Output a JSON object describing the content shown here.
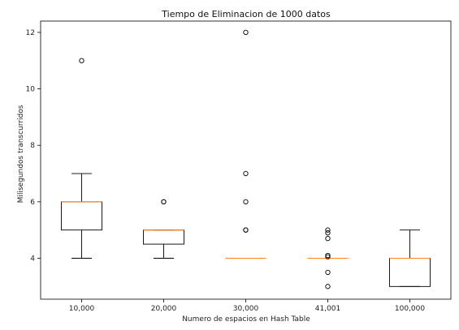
{
  "chart_data": {
    "type": "box",
    "title": "Tiempo de Eliminacion de 1000 datos",
    "xlabel": "Numero de espacios en Hash Table",
    "ylabel": "Milisegundos transcurridos",
    "categories": [
      "10,000",
      "20,000",
      "30,000",
      "41,001",
      "100,000"
    ],
    "ylim": [
      2.55,
      12.4
    ],
    "yticks": [
      4,
      6,
      8,
      10,
      12
    ],
    "grid": false,
    "legend": "none",
    "boxes": [
      {
        "category": "10,000",
        "whisker_low": 4,
        "q1": 5,
        "median": 6,
        "q3": 6,
        "whisker_high": 7,
        "outliers": [
          11
        ]
      },
      {
        "category": "20,000",
        "whisker_low": 4,
        "q1": 4.5,
        "median": 5,
        "q3": 5,
        "whisker_high": 5,
        "outliers": [
          6,
          6
        ]
      },
      {
        "category": "30,000",
        "whisker_low": 4,
        "q1": 4,
        "median": 4,
        "q3": 4,
        "whisker_high": 4,
        "outliers": [
          5,
          5,
          6,
          7,
          12
        ]
      },
      {
        "category": "41,001",
        "whisker_low": 4,
        "q1": 4,
        "median": 4,
        "q3": 4,
        "whisker_high": 4,
        "outliers": [
          3,
          3.5,
          4.05,
          4.1,
          4.7,
          4.9,
          5.0
        ]
      },
      {
        "category": "100,000",
        "whisker_low": 3,
        "q1": 3,
        "median": 4,
        "q3": 4,
        "whisker_high": 5,
        "outliers": []
      }
    ],
    "colors": {
      "box": "#000000",
      "median": "#ff7f0e",
      "outlier": "#000000",
      "frame": "#000000"
    }
  }
}
